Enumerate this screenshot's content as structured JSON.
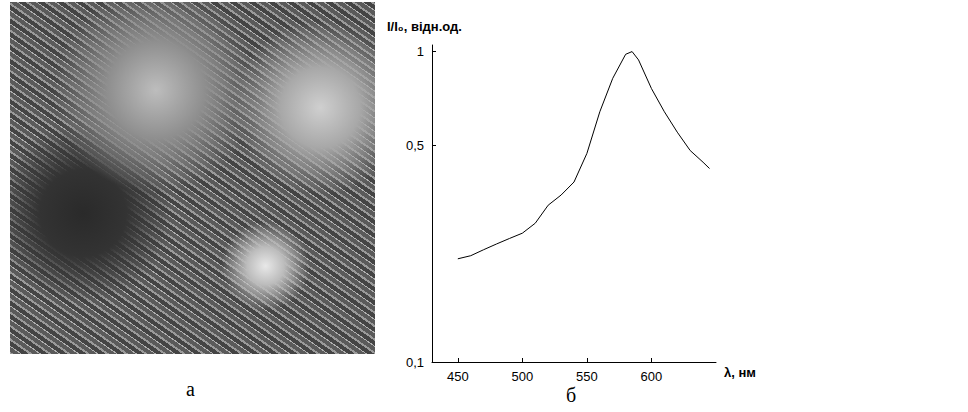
{
  "image_panel": {
    "label": "а"
  },
  "chart_data": {
    "type": "line",
    "label": "б",
    "x_label": "λ, нм",
    "y_label": "I/I₀, відн.од.",
    "x": [
      450,
      460,
      470,
      480,
      490,
      500,
      510,
      520,
      530,
      540,
      550,
      560,
      570,
      580,
      585,
      590,
      600,
      610,
      620,
      630,
      640,
      645
    ],
    "values": [
      0.215,
      0.22,
      0.23,
      0.24,
      0.25,
      0.26,
      0.28,
      0.32,
      0.345,
      0.38,
      0.47,
      0.64,
      0.82,
      0.98,
      1.0,
      0.94,
      0.76,
      0.64,
      0.55,
      0.48,
      0.44,
      0.42
    ],
    "color": "#000000",
    "log": "y",
    "xlim": [
      430,
      650
    ],
    "xticks": [
      450,
      500,
      550,
      600
    ],
    "ylim": [
      0.1,
      1.05
    ],
    "yticks": [
      {
        "value": 0.1,
        "label": "0,1"
      },
      {
        "value": 0.5,
        "label": "0,5"
      },
      1
    ],
    "grid": false
  }
}
